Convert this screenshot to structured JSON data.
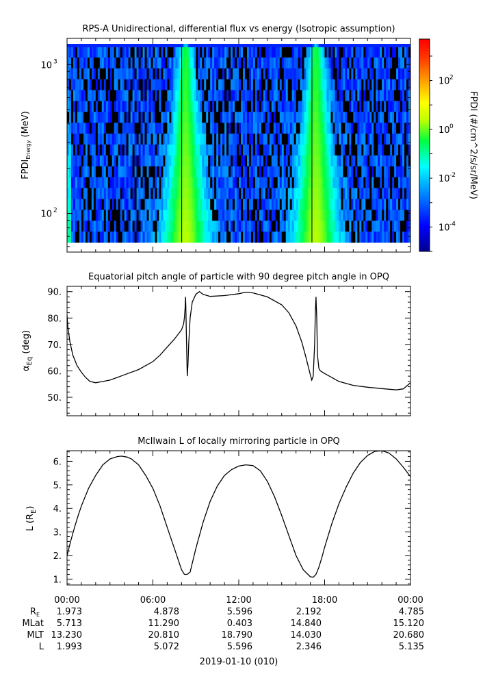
{
  "chart_data": [
    {
      "type": "heatmap",
      "title": "RPS-A Unidirectional, differential flux vs energy (Isotropic assumption)",
      "ylabel_main": "FPDI",
      "ylabel_sub": "Energy",
      "ylabel_unit": " (MeV)",
      "y_scale": "log",
      "ylim": [
        55,
        1500
      ],
      "y_ticks": [
        {
          "value": 100,
          "label": "10",
          "exp": "2"
        },
        {
          "value": 1000,
          "label": "10",
          "exp": "3"
        }
      ],
      "colorbar": {
        "label": "FPDI (#/cm^2/s/sr/MeV)",
        "scale": "log",
        "range": [
          1e-05,
          5000
        ],
        "colormap": "rainbow",
        "ticks": [
          {
            "value": 0.0001,
            "label": "10",
            "exp": "-4"
          },
          {
            "value": 0.01,
            "label": "10",
            "exp": "-2"
          },
          {
            "value": 1,
            "label": "10",
            "exp": "0"
          },
          {
            "value": 100,
            "label": "10",
            "exp": "2"
          }
        ]
      },
      "enhancements_hours": [
        8.3,
        17.4
      ],
      "background_log_flux": -3.2,
      "peak_log_flux": 0.4
    },
    {
      "type": "line",
      "title": "Equatorial pitch angle of particle with 90 degree pitch angle in OPQ",
      "ylabel": "α",
      "ylabel_sub": "Eq",
      "ylabel_unit": " (deg)",
      "ylim": [
        43,
        92
      ],
      "yticks": [
        50,
        60,
        70,
        80,
        90
      ],
      "x_hours": [
        0,
        0.05,
        0.2,
        0.4,
        0.7,
        1,
        1.3,
        1.6,
        2,
        2.5,
        3,
        3.5,
        4,
        5,
        6,
        6.5,
        7,
        7.5,
        8,
        8.1,
        8.15,
        8.2,
        8.25,
        8.28,
        8.3,
        8.35,
        8.4,
        8.45,
        8.5,
        8.6,
        8.75,
        9,
        9.25,
        9.5,
        10,
        11,
        12,
        12.5,
        13,
        14,
        15,
        15.5,
        16,
        16.4,
        16.7,
        17,
        17.1,
        17.2,
        17.3,
        17.35,
        17.4,
        17.45,
        17.5,
        17.6,
        17.7,
        18,
        18.5,
        19,
        20,
        21,
        22,
        23,
        23.5,
        24
      ],
      "series": [
        {
          "values": [
            81,
            77,
            71,
            66,
            62,
            59.5,
            57.5,
            56,
            55.5,
            56,
            56.5,
            57.5,
            58.5,
            60.5,
            63.5,
            66,
            69,
            72,
            75.5,
            77,
            78,
            80,
            84,
            88,
            85,
            70,
            58,
            62,
            70,
            80,
            86,
            89,
            90,
            89,
            88.2,
            88.5,
            89.2,
            89.8,
            89.5,
            88,
            85,
            82,
            77,
            71,
            65,
            58.5,
            56.5,
            58,
            70,
            82,
            88,
            80,
            66,
            61,
            60,
            59,
            57.5,
            56,
            54.5,
            53.8,
            53.3,
            52.8,
            53.2,
            55.5
          ]
        }
      ]
    },
    {
      "type": "line",
      "title": "McIlwain L of locally mirroring particle in OPQ",
      "ylabel": "L (R",
      "ylabel_sub": "E",
      "ylabel_unit": ")",
      "ylim": [
        0.75,
        6.45
      ],
      "yticks": [
        1,
        2,
        3,
        4,
        5,
        6
      ],
      "x_hours": [
        0,
        0.25,
        0.5,
        0.75,
        1,
        1.5,
        2,
        2.5,
        3,
        3.5,
        3.8,
        4.2,
        4.5,
        5,
        5.5,
        6,
        6.5,
        7,
        7.5,
        8,
        8.2,
        8.4,
        8.6,
        8.8,
        9,
        9.5,
        10,
        10.5,
        11,
        11.5,
        12,
        12.5,
        13,
        13.5,
        14,
        14.5,
        15,
        15.5,
        16,
        16.5,
        17,
        17.2,
        17.4,
        17.6,
        17.8,
        18,
        18.5,
        19,
        19.5,
        20,
        20.5,
        21,
        21.5,
        22,
        22.5,
        23,
        23.5,
        24
      ],
      "series": [
        {
          "values": [
            1.99,
            2.6,
            3.15,
            3.65,
            4.1,
            4.85,
            5.4,
            5.85,
            6.1,
            6.2,
            6.22,
            6.18,
            6.1,
            5.85,
            5.4,
            4.85,
            4.1,
            3.2,
            2.3,
            1.4,
            1.2,
            1.2,
            1.3,
            1.8,
            2.3,
            3.4,
            4.3,
            4.95,
            5.4,
            5.65,
            5.8,
            5.85,
            5.82,
            5.6,
            5.15,
            4.5,
            3.7,
            2.85,
            2.0,
            1.4,
            1.1,
            1.08,
            1.2,
            1.5,
            1.9,
            2.35,
            3.35,
            4.2,
            4.9,
            5.5,
            5.95,
            6.25,
            6.42,
            6.45,
            6.35,
            6.1,
            5.75,
            5.35
          ]
        }
      ]
    }
  ],
  "time_axis": {
    "tick_labels": [
      "00:00",
      "06:00",
      "12:00",
      "18:00",
      "00:00"
    ],
    "range_hours": [
      0,
      24
    ]
  },
  "ephemeris": {
    "labels": [
      "R",
      "MLat",
      "MLT",
      "L"
    ],
    "r_sub": "E",
    "rows": [
      [
        "1.973",
        "4.878",
        "5.596",
        "2.192",
        "4.785"
      ],
      [
        "5.713",
        "11.290",
        "0.403",
        "14.840",
        "15.120"
      ],
      [
        "13.230",
        "20.810",
        "18.790",
        "14.030",
        "20.680"
      ],
      [
        "1.993",
        "5.072",
        "5.596",
        "2.346",
        "5.135"
      ]
    ]
  },
  "date_label": "2019-01-10 (010)"
}
